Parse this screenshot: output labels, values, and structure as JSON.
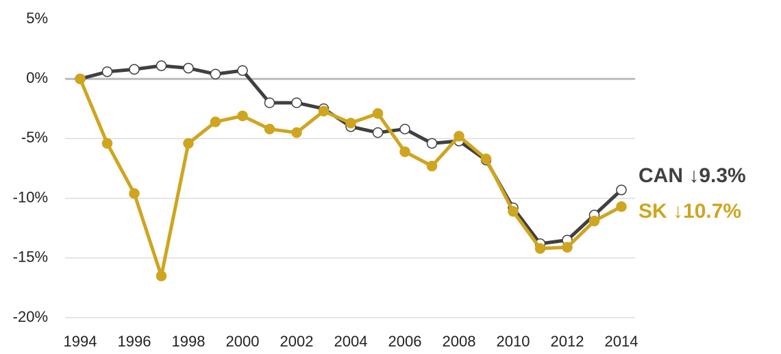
{
  "chart_data": {
    "type": "line",
    "x": [
      1994,
      1995,
      1996,
      1997,
      1998,
      1999,
      2000,
      2001,
      2002,
      2003,
      2004,
      2005,
      2006,
      2007,
      2008,
      2009,
      2010,
      2011,
      2012,
      2013,
      2014
    ],
    "series": [
      {
        "name": "CAN",
        "end_label": "↓9.3%",
        "color": "#404040",
        "marker_fill": "#ffffff",
        "values": [
          0,
          0.6,
          0.8,
          1.1,
          0.9,
          0.4,
          0.7,
          -2.0,
          -2.0,
          -2.5,
          -4.0,
          -4.5,
          -4.2,
          -5.4,
          -5.2,
          -6.8,
          -10.8,
          -13.8,
          -13.5,
          -11.4,
          -9.3
        ]
      },
      {
        "name": "SK",
        "end_label": "↓10.7%",
        "color": "#cfa520",
        "marker_fill": "#cfa520",
        "values": [
          0,
          -5.4,
          -9.6,
          -16.5,
          -5.4,
          -3.6,
          -3.1,
          -4.2,
          -4.5,
          -2.7,
          -3.7,
          -2.9,
          -6.1,
          -7.3,
          -4.8,
          -6.7,
          -11.1,
          -14.2,
          -14.1,
          -11.9,
          -10.7
        ]
      }
    ],
    "xlim": [
      1994,
      2014
    ],
    "xticks": [
      1994,
      1996,
      1998,
      2000,
      2002,
      2004,
      2006,
      2008,
      2010,
      2012,
      2014
    ],
    "ylim": [
      -20,
      5
    ],
    "yticks": [
      {
        "value": -20,
        "label": "-20%"
      },
      {
        "value": -15,
        "label": "-15%"
      },
      {
        "value": -10,
        "label": "-10%"
      },
      {
        "value": -5,
        "label": "-5%"
      },
      {
        "value": 0,
        "label": "0%"
      },
      {
        "value": 5,
        "label": "5%"
      }
    ],
    "grid": true
  }
}
